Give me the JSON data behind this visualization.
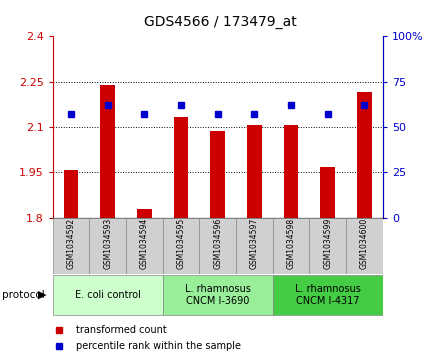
{
  "title": "GDS4566 / 173479_at",
  "samples": [
    "GSM1034592",
    "GSM1034593",
    "GSM1034594",
    "GSM1034595",
    "GSM1034596",
    "GSM1034597",
    "GSM1034598",
    "GSM1034599",
    "GSM1034600"
  ],
  "transformed_counts": [
    1.957,
    2.238,
    1.828,
    2.133,
    2.088,
    2.107,
    2.108,
    1.967,
    2.215
  ],
  "percentile_ranks": [
    57,
    62,
    57,
    62,
    57,
    57,
    62,
    57,
    62
  ],
  "ylim_left": [
    1.8,
    2.4
  ],
  "ylim_right": [
    0,
    100
  ],
  "yticks_left": [
    1.8,
    1.95,
    2.1,
    2.25,
    2.4
  ],
  "yticks_right": [
    0,
    25,
    50,
    75,
    100
  ],
  "bar_color": "#cc0000",
  "dot_color": "#0000cc",
  "bar_width": 0.4,
  "protocols": [
    {
      "label": "E. coli control",
      "start": 0,
      "end": 2,
      "color": "#ccffcc"
    },
    {
      "label": "L. rhamnosus\nCNCM I-3690",
      "start": 3,
      "end": 5,
      "color": "#99ee99"
    },
    {
      "label": "L. rhamnosus\nCNCM I-4317",
      "start": 6,
      "end": 8,
      "color": "#44cc44"
    }
  ],
  "legend_items": [
    {
      "label": "transformed count",
      "color": "#cc0000"
    },
    {
      "label": "percentile rank within the sample",
      "color": "#0000cc"
    }
  ],
  "protocol_label": "protocol",
  "tick_color_left": "#cc0000",
  "tick_color_right": "#0000cc",
  "sample_cell_color": "#d0d0d0",
  "sample_cell_edge": "#ffffff",
  "dotted_grid": [
    1.95,
    2.1,
    2.25
  ]
}
